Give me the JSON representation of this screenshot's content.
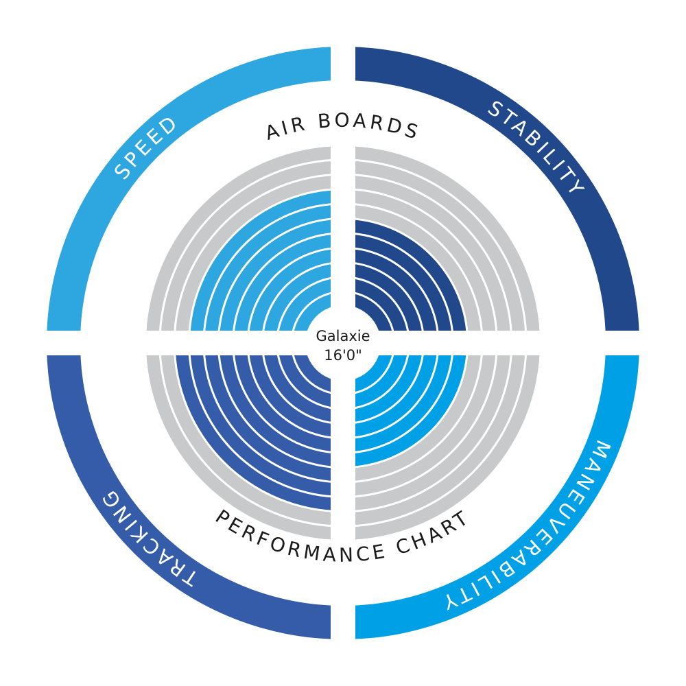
{
  "chart_data": {
    "type": "radial-bar",
    "title": "AIR BOARDS",
    "subtitle": "PERFORMANCE CHART",
    "center_label": {
      "line1": "Galaxie",
      "line2": "16'0\""
    },
    "max_rings": 11,
    "categories": [
      "SPEED",
      "STABILITY",
      "MANEUVERABILITY",
      "TRACKING"
    ],
    "values": [
      8,
      6,
      6,
      9
    ],
    "colors": [
      "#2ea6df",
      "#20488a",
      "#00a0e6",
      "#355ca8"
    ],
    "empty_color": "#c8c9cb"
  }
}
